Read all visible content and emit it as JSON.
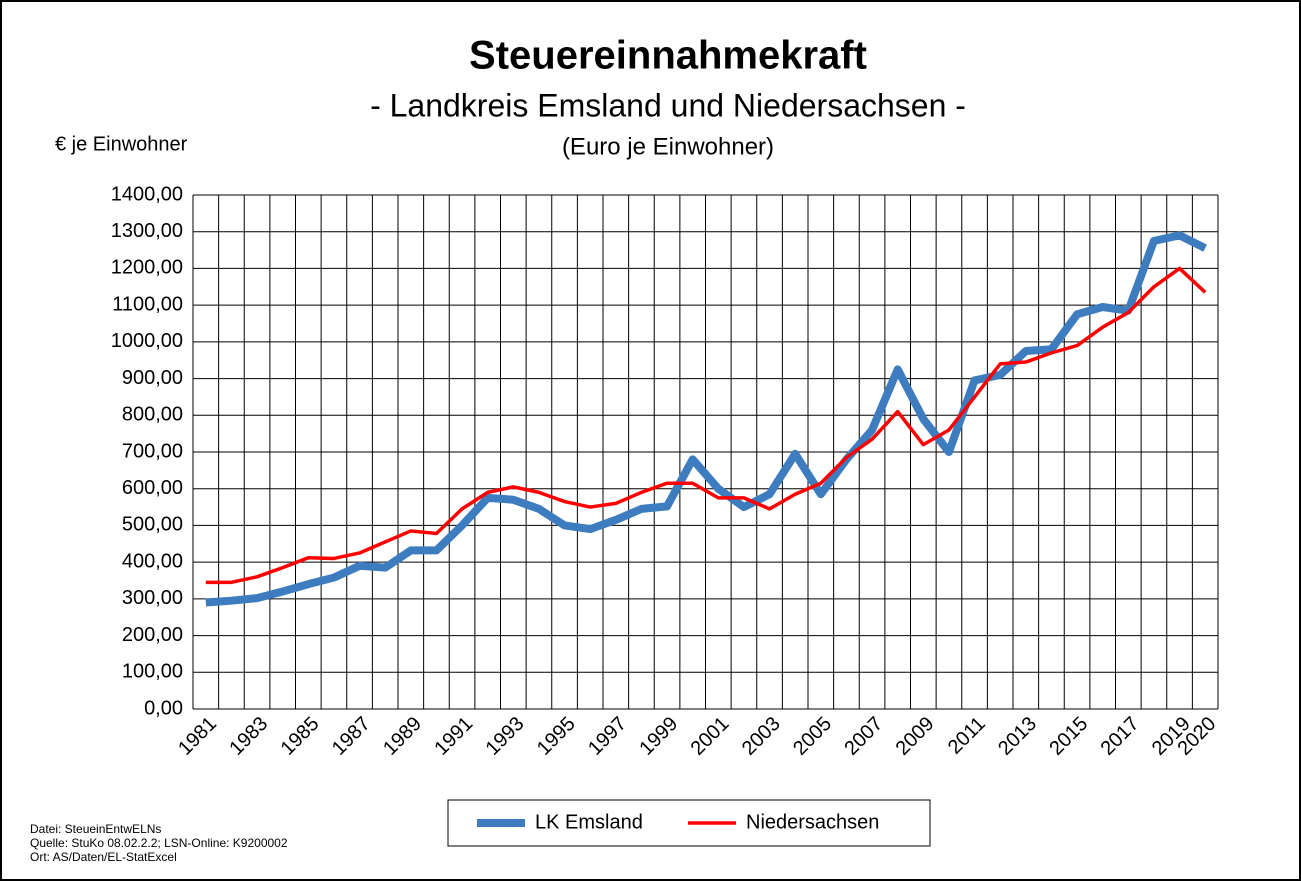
{
  "chart_data": {
    "type": "line",
    "title": "Steuereinnahmekraft",
    "subtitle": "- Landkreis Emsland und Niedersachsen -",
    "subtitle2": "(Euro je Einwohner)",
    "y_label": "€ je Einwohner",
    "footnotes": [
      "Datei: SteueinEntwELNs",
      "Quelle: StuKo 08.02.2.2; LSN-Online:  K9200002",
      "Ort: AS/Daten/EL-StatExcel"
    ],
    "categories": [
      "1981",
      null,
      "1983",
      null,
      "1985",
      null,
      "1987",
      null,
      "1989",
      null,
      "1991",
      null,
      "1993",
      null,
      "1995",
      null,
      "1997",
      null,
      "1999",
      null,
      "2001",
      null,
      "2003",
      null,
      "2005",
      null,
      "2007",
      null,
      "2009",
      null,
      "2011",
      null,
      "2013",
      null,
      "2015",
      null,
      "2017",
      null,
      "2019",
      "2020"
    ],
    "series": [
      {
        "name": "LK Emsland",
        "color": "#3e7cc0",
        "width": 8,
        "values": [
          290,
          295,
          302,
          320,
          340,
          358,
          390,
          385,
          432,
          432,
          500,
          575,
          570,
          545,
          500,
          490,
          515,
          545,
          552,
          680,
          600,
          550,
          585,
          695,
          585,
          680,
          760,
          925,
          790,
          700,
          895,
          910,
          975,
          980,
          1075,
          1095,
          1085,
          1275,
          1290,
          1255
        ]
      },
      {
        "name": "Niedersachsen",
        "color": "#ff0000",
        "width": 3.5,
        "values": [
          345,
          345,
          360,
          385,
          412,
          410,
          425,
          455,
          485,
          478,
          545,
          590,
          605,
          590,
          565,
          550,
          560,
          590,
          615,
          615,
          575,
          575,
          545,
          585,
          615,
          685,
          735,
          810,
          720,
          760,
          850,
          940,
          945,
          970,
          990,
          1040,
          1080,
          1150,
          1200,
          1135
        ]
      }
    ],
    "ylim": [
      0,
      1400
    ],
    "yticks": [
      {
        "value": 0,
        "label": "0,00"
      },
      {
        "value": 100,
        "label": "100,00"
      },
      {
        "value": 200,
        "label": "200,00"
      },
      {
        "value": 300,
        "label": "300,00"
      },
      {
        "value": 400,
        "label": "400,00"
      },
      {
        "value": 500,
        "label": "500,00"
      },
      {
        "value": 600,
        "label": "600,00"
      },
      {
        "value": 700,
        "label": "700,00"
      },
      {
        "value": 800,
        "label": "800,00"
      },
      {
        "value": 900,
        "label": "900,00"
      },
      {
        "value": 1000,
        "label": "1000,00"
      },
      {
        "value": 1100,
        "label": "1100,00"
      },
      {
        "value": 1200,
        "label": "1200,00"
      },
      {
        "value": 1300,
        "label": "1300,00"
      },
      {
        "value": 1400,
        "label": "1400,00"
      }
    ],
    "grid": true
  }
}
